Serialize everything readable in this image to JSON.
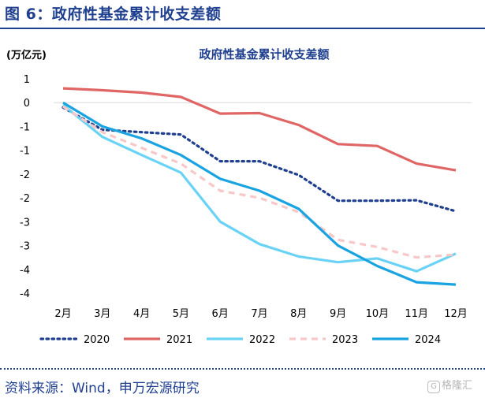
{
  "figure": {
    "title": "图 6：政府性基金累计收支差额",
    "source": "资料来源：Wind，申万宏源研究",
    "watermark": "格隆汇"
  },
  "chart_data": {
    "type": "line",
    "title": "政府性基金累计收支差额",
    "unit_label": "(万亿元)",
    "categories": [
      "2月",
      "3月",
      "4月",
      "5月",
      "6月",
      "7月",
      "8月",
      "9月",
      "10月",
      "11月",
      "12月"
    ],
    "yticks": [
      "1",
      "0",
      "-1",
      "-1",
      "-2",
      "-2",
      "-3",
      "-3",
      "-4",
      "-4"
    ],
    "ylim": [
      -4.0,
      0.5
    ],
    "legend_position": "bottom",
    "grid": false,
    "series": [
      {
        "name": "2020",
        "color": "#1f3f8f",
        "style": "dotted",
        "values": [
          -0.1,
          -0.57,
          -0.62,
          -0.67,
          -1.23,
          -1.23,
          -1.52,
          -2.06,
          -2.06,
          -2.05,
          -2.28
        ]
      },
      {
        "name": "2021",
        "color": "#e06666",
        "style": "solid",
        "values": [
          0.3,
          0.26,
          0.21,
          0.12,
          -0.23,
          -0.22,
          -0.47,
          -0.87,
          -0.91,
          -1.28,
          -1.42
        ]
      },
      {
        "name": "2022",
        "color": "#6ad3f5",
        "style": "solid",
        "values": [
          -0.05,
          -0.72,
          -1.1,
          -1.47,
          -2.5,
          -2.97,
          -3.23,
          -3.35,
          -3.27,
          -3.54,
          -3.17
        ]
      },
      {
        "name": "2023",
        "color": "#f8c8c8",
        "style": "dashed",
        "values": [
          -0.08,
          -0.62,
          -0.95,
          -1.28,
          -1.85,
          -2.0,
          -2.3,
          -2.88,
          -3.03,
          -3.25,
          -3.19
        ]
      },
      {
        "name": "2024",
        "color": "#19a3e0",
        "style": "solid",
        "values": [
          0.0,
          -0.5,
          -0.75,
          -1.1,
          -1.6,
          -1.85,
          -2.23,
          -3.0,
          -3.43,
          -3.77,
          -3.82
        ]
      }
    ]
  }
}
